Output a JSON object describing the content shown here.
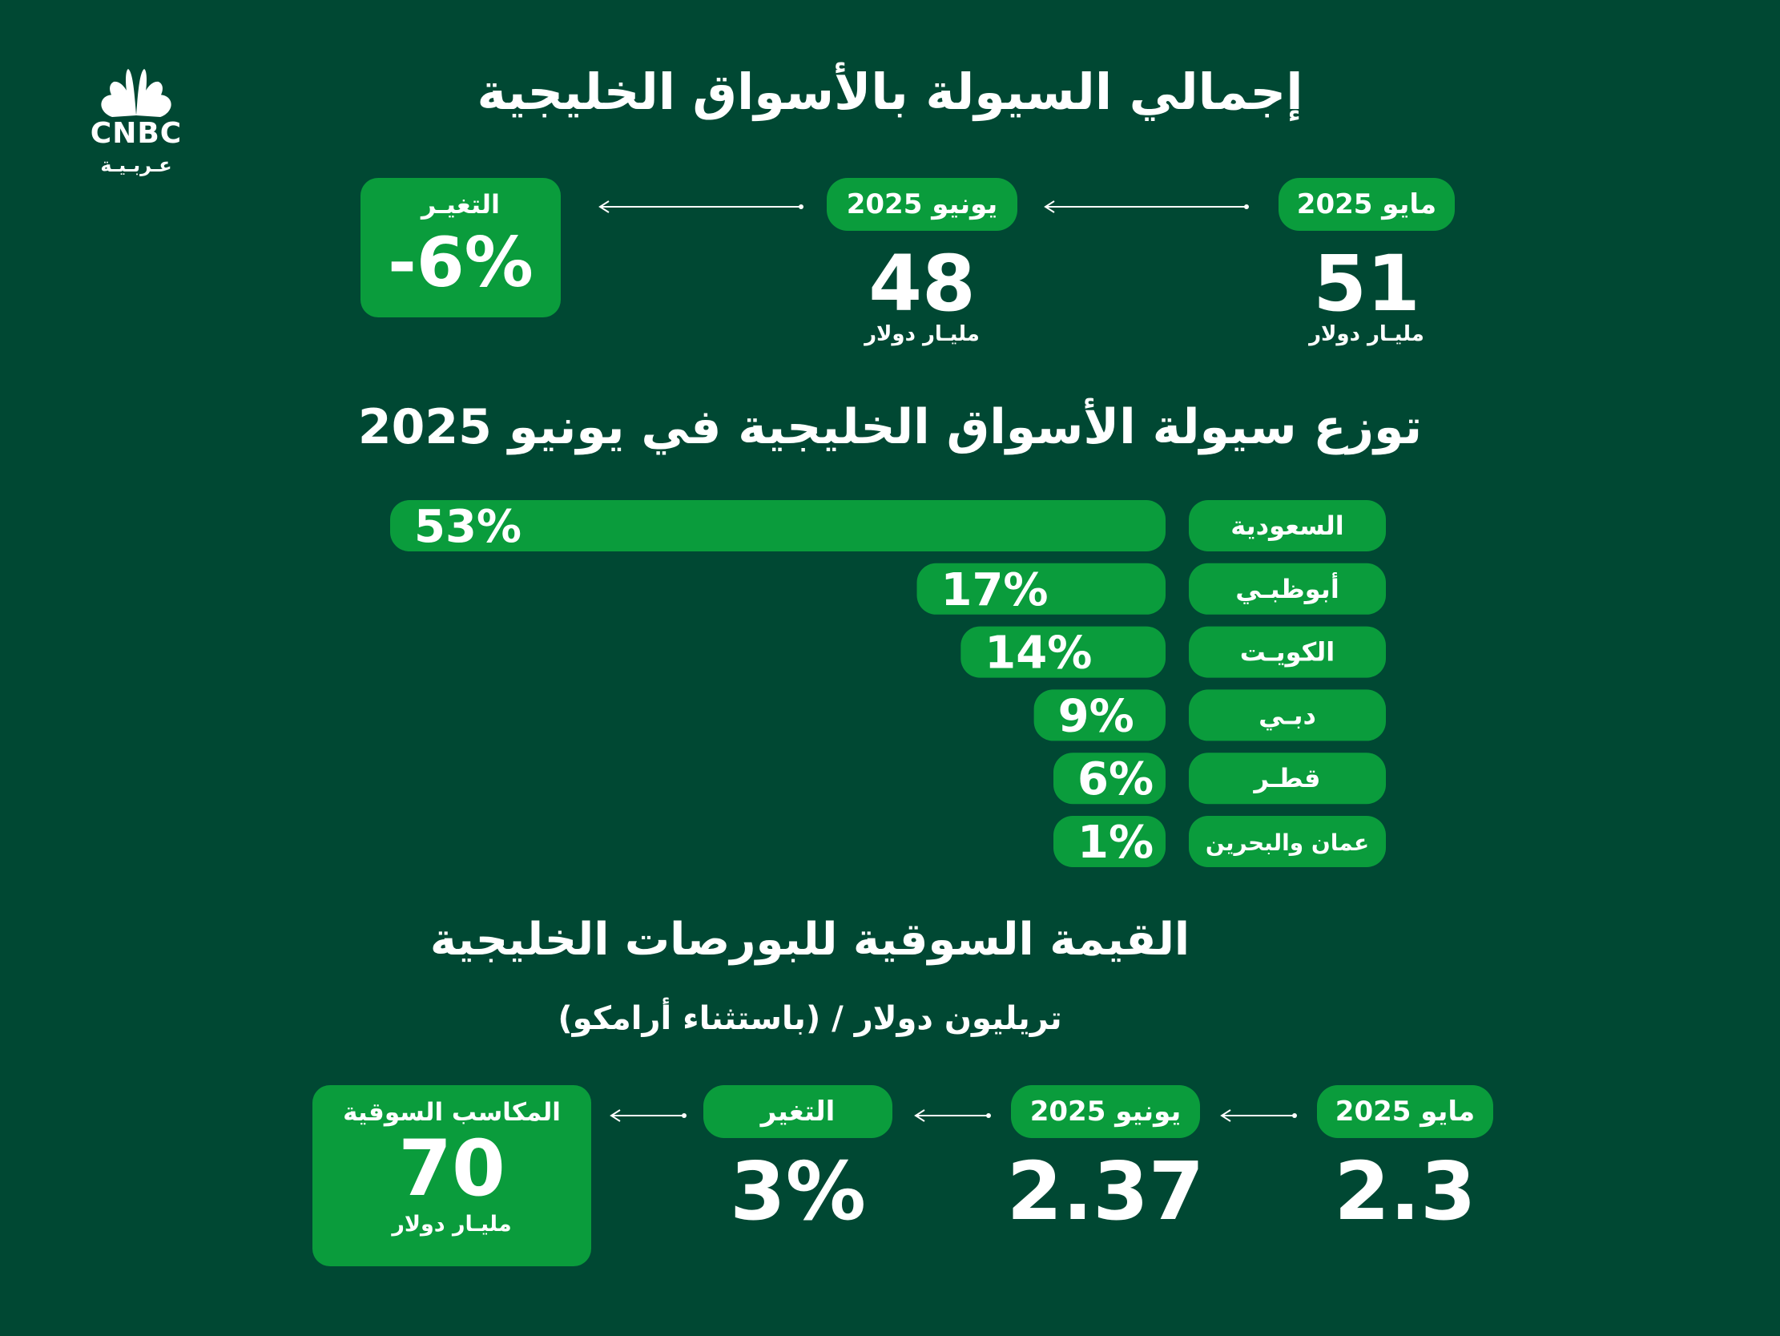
{
  "brand": {
    "logo_text": "CNBC",
    "logo_subtext": "عـربـيـة"
  },
  "section1": {
    "title": "إجمالي السيولة بالأسواق الخليجية",
    "may": {
      "label": "مايو 2025",
      "value": "51",
      "unit": "مليـار دولار"
    },
    "june": {
      "label": "يونيو 2025",
      "value": "48",
      "unit": "مليـار دولار"
    },
    "change": {
      "label": "التغيـر",
      "value": "-6%"
    }
  },
  "chart_data": {
    "type": "bar",
    "title": "توزع سيولة الأسواق الخليجية في يونيو 2025",
    "categories": [
      "السعودية",
      "أبوظبـي",
      "الكويـت",
      "دبـي",
      "قطـر",
      "عمان والبحرين"
    ],
    "values": [
      53,
      17,
      14,
      9,
      6,
      1
    ],
    "value_labels": [
      "53%",
      "17%",
      "14%",
      "9%",
      "6%",
      "1%"
    ],
    "orientation": "horizontal",
    "bar_color": "#0a9c3c"
  },
  "section3": {
    "title": "القيمة السوقية للبورصات الخليجية",
    "subtitle": "(باستثناء أرامكو) / تريليون دولار",
    "may": {
      "label": "مايو 2025",
      "value": "2.3"
    },
    "june": {
      "label": "يونيو 2025",
      "value": "2.37"
    },
    "change": {
      "label": "التغير",
      "value": "3%"
    },
    "gains": {
      "label": "المكاسب السوقية",
      "value": "70",
      "unit": "مليـار دولار"
    }
  },
  "colors": {
    "background": "#004833",
    "accent": "#0a9c3c",
    "text": "#ffffff"
  }
}
